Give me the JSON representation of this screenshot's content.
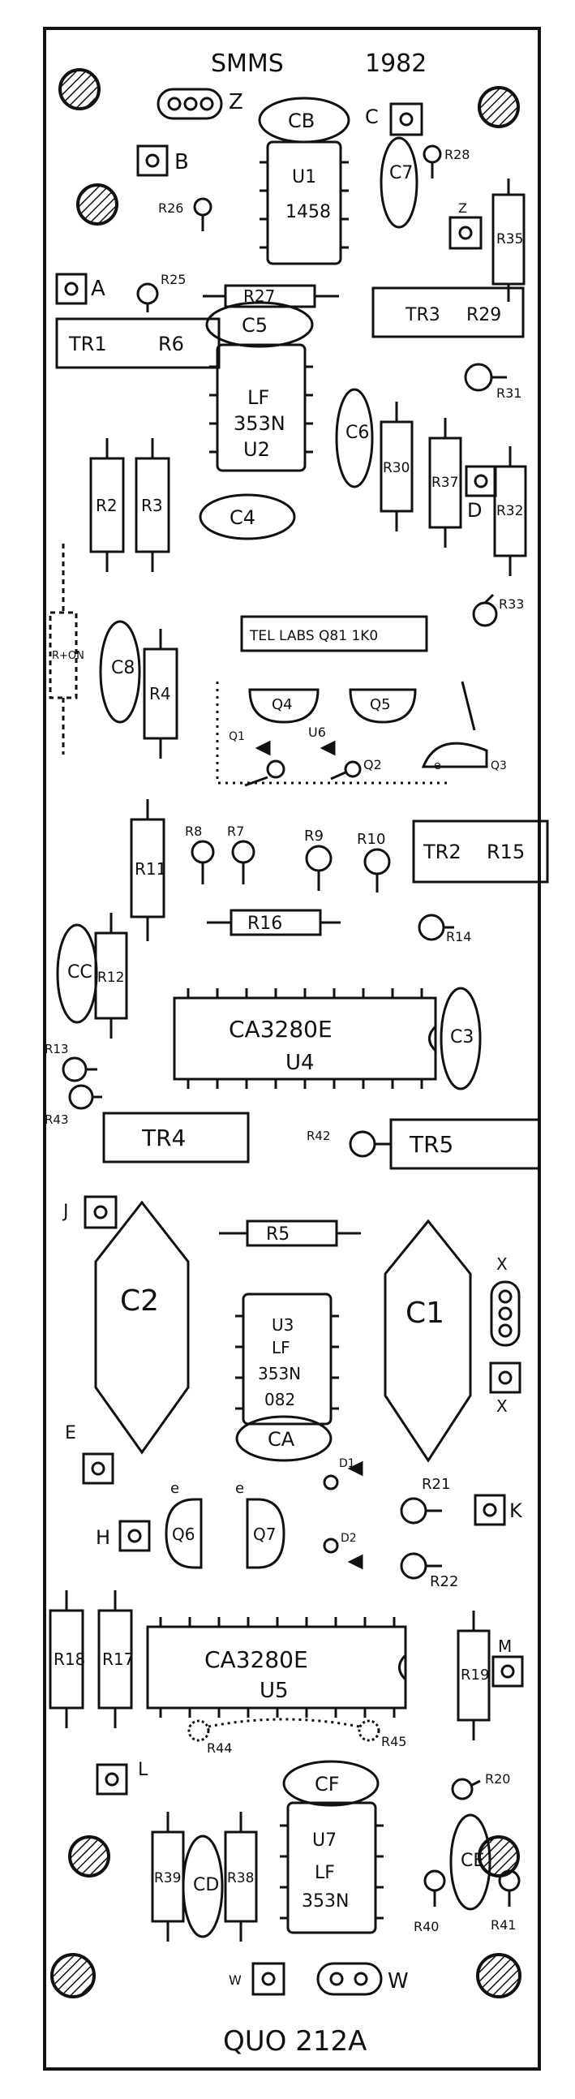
{
  "board": {
    "header_left": "SMMS",
    "header_right": "1982",
    "footer": "QUO 212A",
    "maker_label": "TEL LABS Q81 1K0"
  },
  "chips": {
    "u1": {
      "ref": "U1",
      "part": "1458"
    },
    "u2": {
      "part": "LF",
      "part2": "353N",
      "ref": "U2"
    },
    "u4": {
      "part": "CA3280E",
      "ref": "U4"
    },
    "u3": {
      "ref": "U3",
      "part": "LF",
      "part2": "353N",
      "part3": "082"
    },
    "u5": {
      "part": "CA3280E",
      "ref": "U5"
    },
    "u7": {
      "ref": "U7",
      "part": "LF",
      "part2": "353N"
    }
  },
  "caps": {
    "cb": "CB",
    "c7": "C7",
    "c5": "C5",
    "c6": "C6",
    "c4": "C4",
    "c8": "C8",
    "cc": "CC",
    "c3": "C3",
    "c2": "C2",
    "c1": "C1",
    "ca": "CA",
    "cf": "CF",
    "cd": "CD",
    "ce": "CE"
  },
  "resistors": {
    "r27": "R27",
    "r35": "R35",
    "r2": "R2",
    "r3": "R3",
    "r30": "R30",
    "r37": "R37",
    "r32": "R32",
    "r4": "R4",
    "r11": "R11",
    "r16": "R16",
    "r12": "R12",
    "r5": "R5",
    "r18": "R18",
    "r17": "R17",
    "r19": "R19",
    "r39": "R39",
    "r38": "R38",
    "r_on": "R+ON"
  },
  "trimmers": {
    "tr1": "TR1",
    "r6": "R6",
    "tr3": "TR3",
    "r29": "R29",
    "tr2": "TR2",
    "r15": "R15",
    "tr4": "TR4",
    "tr5": "TR5"
  },
  "small_labels": {
    "r28": "R28",
    "r26": "R26",
    "r25": "R25",
    "r31": "R31",
    "r33": "R33",
    "r8": "R8",
    "r7": "R7",
    "r9": "R9",
    "r10": "R10",
    "r14": "R14",
    "r13": "R13",
    "r43": "R43",
    "r42": "R42",
    "r21": "R21",
    "r22": "R22",
    "r44": "R44",
    "r45": "R45",
    "r20": "R20",
    "r40": "R40",
    "r41": "R41",
    "d1": "D1",
    "d2": "D2",
    "q1": "Q1",
    "q2": "Q2",
    "q3": "Q3",
    "q4": "Q4",
    "q5": "Q5",
    "q6": "Q6",
    "q7": "Q7",
    "u6": "U6",
    "e1": "e",
    "e2": "e",
    "e3": "e"
  },
  "pads": {
    "z": "Z",
    "c": "C",
    "b": "B",
    "a": "A",
    "z2": "Z",
    "d": "D",
    "j": "J",
    "x1": "X",
    "x2": "X",
    "e": "E",
    "h": "H",
    "k": "K",
    "m": "M",
    "l": "L",
    "w1": "W",
    "w2": "W"
  }
}
